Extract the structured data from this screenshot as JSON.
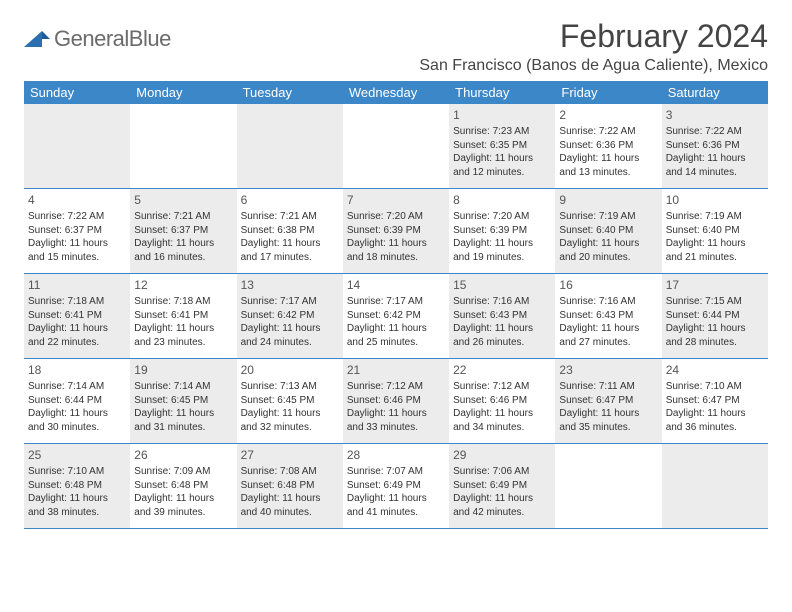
{
  "logo": {
    "text1": "General",
    "text2": "Blue"
  },
  "title": "February 2024",
  "location": "San Francisco (Banos de Agua Caliente), Mexico",
  "colors": {
    "header_bg": "#3b87c8",
    "header_text": "#ffffff",
    "shaded_bg": "#ececec",
    "border": "#3b87c8",
    "text": "#333333",
    "title_text": "#444444",
    "logo_gray": "#6b6b6b",
    "logo_blue": "#2b6fb0"
  },
  "day_headers": [
    "Sunday",
    "Monday",
    "Tuesday",
    "Wednesday",
    "Thursday",
    "Friday",
    "Saturday"
  ],
  "weeks": [
    [
      {
        "shaded": true
      },
      {
        "shaded": false
      },
      {
        "shaded": true
      },
      {
        "shaded": false
      },
      {
        "shaded": true,
        "num": "1",
        "sunrise": "Sunrise: 7:23 AM",
        "sunset": "Sunset: 6:35 PM",
        "dl1": "Daylight: 11 hours",
        "dl2": "and 12 minutes."
      },
      {
        "shaded": false,
        "num": "2",
        "sunrise": "Sunrise: 7:22 AM",
        "sunset": "Sunset: 6:36 PM",
        "dl1": "Daylight: 11 hours",
        "dl2": "and 13 minutes."
      },
      {
        "shaded": true,
        "num": "3",
        "sunrise": "Sunrise: 7:22 AM",
        "sunset": "Sunset: 6:36 PM",
        "dl1": "Daylight: 11 hours",
        "dl2": "and 14 minutes."
      }
    ],
    [
      {
        "shaded": false,
        "num": "4",
        "sunrise": "Sunrise: 7:22 AM",
        "sunset": "Sunset: 6:37 PM",
        "dl1": "Daylight: 11 hours",
        "dl2": "and 15 minutes."
      },
      {
        "shaded": true,
        "num": "5",
        "sunrise": "Sunrise: 7:21 AM",
        "sunset": "Sunset: 6:37 PM",
        "dl1": "Daylight: 11 hours",
        "dl2": "and 16 minutes."
      },
      {
        "shaded": false,
        "num": "6",
        "sunrise": "Sunrise: 7:21 AM",
        "sunset": "Sunset: 6:38 PM",
        "dl1": "Daylight: 11 hours",
        "dl2": "and 17 minutes."
      },
      {
        "shaded": true,
        "num": "7",
        "sunrise": "Sunrise: 7:20 AM",
        "sunset": "Sunset: 6:39 PM",
        "dl1": "Daylight: 11 hours",
        "dl2": "and 18 minutes."
      },
      {
        "shaded": false,
        "num": "8",
        "sunrise": "Sunrise: 7:20 AM",
        "sunset": "Sunset: 6:39 PM",
        "dl1": "Daylight: 11 hours",
        "dl2": "and 19 minutes."
      },
      {
        "shaded": true,
        "num": "9",
        "sunrise": "Sunrise: 7:19 AM",
        "sunset": "Sunset: 6:40 PM",
        "dl1": "Daylight: 11 hours",
        "dl2": "and 20 minutes."
      },
      {
        "shaded": false,
        "num": "10",
        "sunrise": "Sunrise: 7:19 AM",
        "sunset": "Sunset: 6:40 PM",
        "dl1": "Daylight: 11 hours",
        "dl2": "and 21 minutes."
      }
    ],
    [
      {
        "shaded": true,
        "num": "11",
        "sunrise": "Sunrise: 7:18 AM",
        "sunset": "Sunset: 6:41 PM",
        "dl1": "Daylight: 11 hours",
        "dl2": "and 22 minutes."
      },
      {
        "shaded": false,
        "num": "12",
        "sunrise": "Sunrise: 7:18 AM",
        "sunset": "Sunset: 6:41 PM",
        "dl1": "Daylight: 11 hours",
        "dl2": "and 23 minutes."
      },
      {
        "shaded": true,
        "num": "13",
        "sunrise": "Sunrise: 7:17 AM",
        "sunset": "Sunset: 6:42 PM",
        "dl1": "Daylight: 11 hours",
        "dl2": "and 24 minutes."
      },
      {
        "shaded": false,
        "num": "14",
        "sunrise": "Sunrise: 7:17 AM",
        "sunset": "Sunset: 6:42 PM",
        "dl1": "Daylight: 11 hours",
        "dl2": "and 25 minutes."
      },
      {
        "shaded": true,
        "num": "15",
        "sunrise": "Sunrise: 7:16 AM",
        "sunset": "Sunset: 6:43 PM",
        "dl1": "Daylight: 11 hours",
        "dl2": "and 26 minutes."
      },
      {
        "shaded": false,
        "num": "16",
        "sunrise": "Sunrise: 7:16 AM",
        "sunset": "Sunset: 6:43 PM",
        "dl1": "Daylight: 11 hours",
        "dl2": "and 27 minutes."
      },
      {
        "shaded": true,
        "num": "17",
        "sunrise": "Sunrise: 7:15 AM",
        "sunset": "Sunset: 6:44 PM",
        "dl1": "Daylight: 11 hours",
        "dl2": "and 28 minutes."
      }
    ],
    [
      {
        "shaded": false,
        "num": "18",
        "sunrise": "Sunrise: 7:14 AM",
        "sunset": "Sunset: 6:44 PM",
        "dl1": "Daylight: 11 hours",
        "dl2": "and 30 minutes."
      },
      {
        "shaded": true,
        "num": "19",
        "sunrise": "Sunrise: 7:14 AM",
        "sunset": "Sunset: 6:45 PM",
        "dl1": "Daylight: 11 hours",
        "dl2": "and 31 minutes."
      },
      {
        "shaded": false,
        "num": "20",
        "sunrise": "Sunrise: 7:13 AM",
        "sunset": "Sunset: 6:45 PM",
        "dl1": "Daylight: 11 hours",
        "dl2": "and 32 minutes."
      },
      {
        "shaded": true,
        "num": "21",
        "sunrise": "Sunrise: 7:12 AM",
        "sunset": "Sunset: 6:46 PM",
        "dl1": "Daylight: 11 hours",
        "dl2": "and 33 minutes."
      },
      {
        "shaded": false,
        "num": "22",
        "sunrise": "Sunrise: 7:12 AM",
        "sunset": "Sunset: 6:46 PM",
        "dl1": "Daylight: 11 hours",
        "dl2": "and 34 minutes."
      },
      {
        "shaded": true,
        "num": "23",
        "sunrise": "Sunrise: 7:11 AM",
        "sunset": "Sunset: 6:47 PM",
        "dl1": "Daylight: 11 hours",
        "dl2": "and 35 minutes."
      },
      {
        "shaded": false,
        "num": "24",
        "sunrise": "Sunrise: 7:10 AM",
        "sunset": "Sunset: 6:47 PM",
        "dl1": "Daylight: 11 hours",
        "dl2": "and 36 minutes."
      }
    ],
    [
      {
        "shaded": true,
        "num": "25",
        "sunrise": "Sunrise: 7:10 AM",
        "sunset": "Sunset: 6:48 PM",
        "dl1": "Daylight: 11 hours",
        "dl2": "and 38 minutes."
      },
      {
        "shaded": false,
        "num": "26",
        "sunrise": "Sunrise: 7:09 AM",
        "sunset": "Sunset: 6:48 PM",
        "dl1": "Daylight: 11 hours",
        "dl2": "and 39 minutes."
      },
      {
        "shaded": true,
        "num": "27",
        "sunrise": "Sunrise: 7:08 AM",
        "sunset": "Sunset: 6:48 PM",
        "dl1": "Daylight: 11 hours",
        "dl2": "and 40 minutes."
      },
      {
        "shaded": false,
        "num": "28",
        "sunrise": "Sunrise: 7:07 AM",
        "sunset": "Sunset: 6:49 PM",
        "dl1": "Daylight: 11 hours",
        "dl2": "and 41 minutes."
      },
      {
        "shaded": true,
        "num": "29",
        "sunrise": "Sunrise: 7:06 AM",
        "sunset": "Sunset: 6:49 PM",
        "dl1": "Daylight: 11 hours",
        "dl2": "and 42 minutes."
      },
      {
        "shaded": false
      },
      {
        "shaded": true
      }
    ]
  ]
}
